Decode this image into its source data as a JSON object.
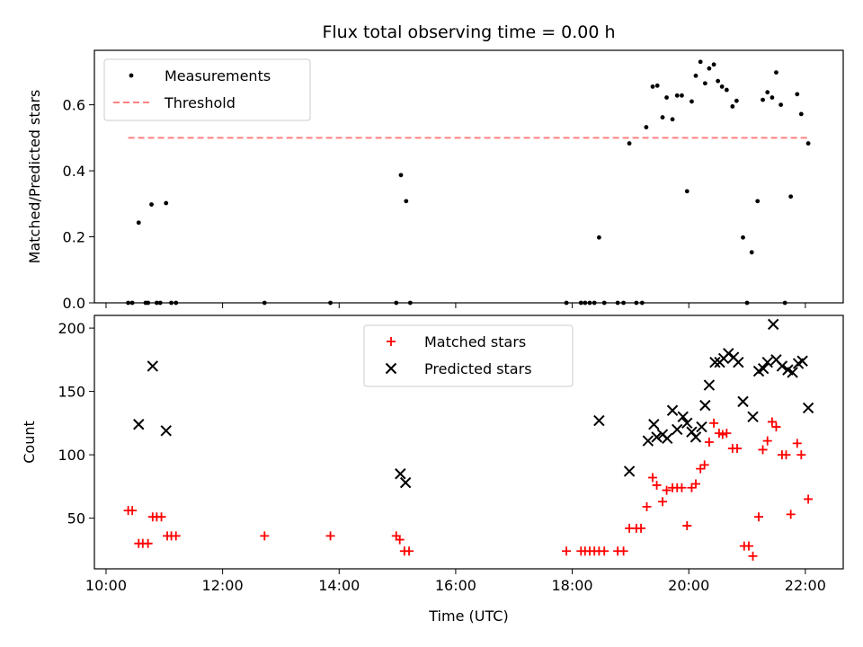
{
  "chart_data": [
    {
      "type": "scatter",
      "title": "Flux total observing time = 0.00 h",
      "ylabel": "Matched/Predicted stars",
      "xlabel": "",
      "xlim": [
        9.8,
        22.65
      ],
      "ylim": [
        0,
        0.765
      ],
      "x_ticks": [
        10,
        12,
        14,
        16,
        18,
        20,
        22
      ],
      "y_ticks": [
        0.0,
        0.2,
        0.4,
        0.6
      ],
      "y_tick_labels": [
        "0.0",
        "0.2",
        "0.4",
        "0.6"
      ],
      "grid": false,
      "legend_position": "top-left",
      "series": [
        {
          "name": "Measurements",
          "kind": "points",
          "color": "#000000",
          "points": [
            [
              10.38,
              0
            ],
            [
              10.45,
              0
            ],
            [
              10.56,
              0.243
            ],
            [
              10.68,
              0
            ],
            [
              10.72,
              0
            ],
            [
              10.78,
              0.298
            ],
            [
              10.87,
              0
            ],
            [
              10.93,
              0
            ],
            [
              11.03,
              0.302
            ],
            [
              11.12,
              0
            ],
            [
              11.2,
              0
            ],
            [
              12.72,
              0
            ],
            [
              13.85,
              0
            ],
            [
              14.98,
              0
            ],
            [
              15.06,
              0.387
            ],
            [
              15.15,
              0.308
            ],
            [
              15.22,
              0
            ],
            [
              17.9,
              0
            ],
            [
              18.15,
              0
            ],
            [
              18.22,
              0
            ],
            [
              18.3,
              0
            ],
            [
              18.38,
              0
            ],
            [
              18.46,
              0.198
            ],
            [
              18.55,
              0
            ],
            [
              18.78,
              0
            ],
            [
              18.88,
              0
            ],
            [
              18.98,
              0.483
            ],
            [
              19.1,
              0
            ],
            [
              19.2,
              0
            ],
            [
              19.27,
              0.532
            ],
            [
              19.38,
              0.655
            ],
            [
              19.46,
              0.658
            ],
            [
              19.55,
              0.562
            ],
            [
              19.62,
              0.622
            ],
            [
              19.72,
              0.556
            ],
            [
              19.8,
              0.628
            ],
            [
              19.88,
              0.628
            ],
            [
              19.97,
              0.338
            ],
            [
              20.05,
              0.61
            ],
            [
              20.12,
              0.688
            ],
            [
              20.2,
              0.73
            ],
            [
              20.28,
              0.665
            ],
            [
              20.35,
              0.71
            ],
            [
              20.43,
              0.722
            ],
            [
              20.5,
              0.672
            ],
            [
              20.57,
              0.655
            ],
            [
              20.65,
              0.645
            ],
            [
              20.75,
              0.595
            ],
            [
              20.82,
              0.612
            ],
            [
              20.93,
              0.198
            ],
            [
              21.0,
              0
            ],
            [
              21.08,
              0.153
            ],
            [
              21.18,
              0.308
            ],
            [
              21.27,
              0.615
            ],
            [
              21.35,
              0.638
            ],
            [
              21.43,
              0.622
            ],
            [
              21.5,
              0.698
            ],
            [
              21.58,
              0.6
            ],
            [
              21.65,
              0
            ],
            [
              21.75,
              0.322
            ],
            [
              21.86,
              0.632
            ],
            [
              21.93,
              0.572
            ],
            [
              22.05,
              0.483
            ]
          ]
        },
        {
          "name": "Threshold",
          "kind": "dashed-line",
          "color": "#ff8080",
          "points": [
            [
              10.38,
              0.5
            ],
            [
              22.05,
              0.5
            ]
          ]
        }
      ]
    },
    {
      "type": "scatter",
      "title": "",
      "ylabel": "Count",
      "xlabel": "Time (UTC)",
      "xlim": [
        9.8,
        22.65
      ],
      "ylim": [
        10,
        210
      ],
      "x_ticks": [
        10,
        12,
        14,
        16,
        18,
        20,
        22
      ],
      "x_tick_labels": [
        "10:00",
        "12:00",
        "14:00",
        "16:00",
        "18:00",
        "20:00",
        "22:00"
      ],
      "y_ticks": [
        50,
        100,
        150,
        200
      ],
      "y_tick_labels": [
        "50",
        "100",
        "150",
        "200"
      ],
      "grid": false,
      "legend_position": "top-center",
      "series": [
        {
          "name": "Matched stars",
          "kind": "plus",
          "color": "#ff0000",
          "points": [
            [
              10.38,
              56
            ],
            [
              10.45,
              56
            ],
            [
              10.56,
              30
            ],
            [
              10.63,
              30
            ],
            [
              10.72,
              30
            ],
            [
              10.8,
              51
            ],
            [
              10.87,
              51
            ],
            [
              10.95,
              51
            ],
            [
              11.05,
              36
            ],
            [
              11.12,
              36
            ],
            [
              11.2,
              36
            ],
            [
              12.72,
              36
            ],
            [
              13.85,
              36
            ],
            [
              14.98,
              36
            ],
            [
              15.04,
              33
            ],
            [
              15.12,
              24
            ],
            [
              15.2,
              24
            ],
            [
              17.9,
              24
            ],
            [
              18.15,
              24
            ],
            [
              18.22,
              24
            ],
            [
              18.3,
              24
            ],
            [
              18.38,
              24
            ],
            [
              18.46,
              24
            ],
            [
              18.55,
              24
            ],
            [
              18.78,
              24
            ],
            [
              18.88,
              24
            ],
            [
              18.98,
              42
            ],
            [
              19.1,
              42
            ],
            [
              19.18,
              42
            ],
            [
              19.28,
              59
            ],
            [
              19.38,
              82
            ],
            [
              19.45,
              76
            ],
            [
              19.55,
              63
            ],
            [
              19.62,
              72
            ],
            [
              19.72,
              74
            ],
            [
              19.8,
              74
            ],
            [
              19.88,
              74
            ],
            [
              19.97,
              44
            ],
            [
              20.05,
              74
            ],
            [
              20.12,
              77
            ],
            [
              20.2,
              89
            ],
            [
              20.27,
              92
            ],
            [
              20.35,
              110
            ],
            [
              20.43,
              125
            ],
            [
              20.52,
              117
            ],
            [
              20.58,
              116
            ],
            [
              20.65,
              117
            ],
            [
              20.75,
              105
            ],
            [
              20.83,
              105
            ],
            [
              20.95,
              28
            ],
            [
              21.03,
              28
            ],
            [
              21.1,
              20
            ],
            [
              21.2,
              51
            ],
            [
              21.27,
              104
            ],
            [
              21.35,
              111
            ],
            [
              21.43,
              126
            ],
            [
              21.5,
              122
            ],
            [
              21.6,
              100
            ],
            [
              21.67,
              100
            ],
            [
              21.75,
              53
            ],
            [
              21.86,
              109
            ],
            [
              21.93,
              100
            ],
            [
              22.05,
              65
            ]
          ]
        },
        {
          "name": "Predicted stars",
          "kind": "cross",
          "color": "#000000",
          "points": [
            [
              10.56,
              124
            ],
            [
              10.8,
              170
            ],
            [
              11.03,
              119
            ],
            [
              15.05,
              85
            ],
            [
              15.14,
              78
            ],
            [
              18.46,
              127
            ],
            [
              18.98,
              87
            ],
            [
              19.3,
              111
            ],
            [
              19.4,
              124
            ],
            [
              19.45,
              114
            ],
            [
              19.55,
              116
            ],
            [
              19.63,
              113
            ],
            [
              19.72,
              135
            ],
            [
              19.8,
              120
            ],
            [
              19.9,
              130
            ],
            [
              19.97,
              125
            ],
            [
              20.05,
              118
            ],
            [
              20.12,
              114
            ],
            [
              20.22,
              122
            ],
            [
              20.28,
              139
            ],
            [
              20.35,
              155
            ],
            [
              20.45,
              173
            ],
            [
              20.53,
              173
            ],
            [
              20.6,
              176
            ],
            [
              20.68,
              180
            ],
            [
              20.77,
              177
            ],
            [
              20.85,
              173
            ],
            [
              20.93,
              142
            ],
            [
              21.1,
              130
            ],
            [
              21.2,
              166
            ],
            [
              21.28,
              168
            ],
            [
              21.35,
              173
            ],
            [
              21.45,
              203
            ],
            [
              21.5,
              175
            ],
            [
              21.6,
              170
            ],
            [
              21.7,
              167
            ],
            [
              21.78,
              165
            ],
            [
              21.88,
              172
            ],
            [
              21.95,
              174
            ],
            [
              22.05,
              137
            ]
          ]
        }
      ]
    }
  ]
}
